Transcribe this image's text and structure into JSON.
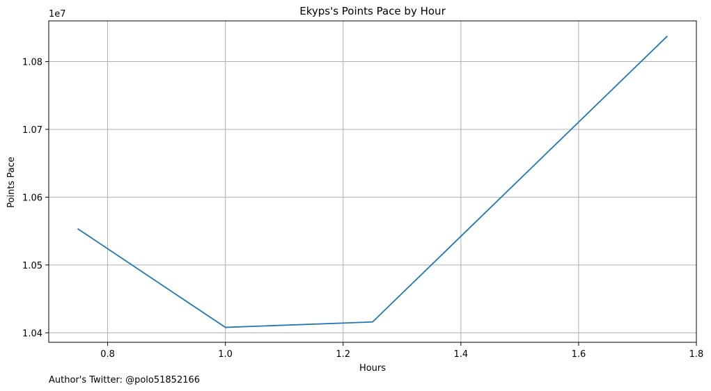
{
  "chart_data": {
    "type": "line",
    "title": "Ekyps's Points Pace by Hour",
    "xlabel": "Hours",
    "ylabel": "Points Pace",
    "y_offset_label": "1e7",
    "xlim": [
      0.7,
      1.8
    ],
    "ylim": [
      10386000,
      10860000
    ],
    "x_ticks": [
      0.8,
      1.0,
      1.2,
      1.4,
      1.6,
      1.8
    ],
    "x_tick_labels": [
      "0.8",
      "1.0",
      "1.2",
      "1.4",
      "1.6",
      "1.8"
    ],
    "y_ticks": [
      10400000,
      10500000,
      10600000,
      10700000,
      10800000
    ],
    "y_tick_labels": [
      "1.04",
      "1.05",
      "1.06",
      "1.07",
      "1.08"
    ],
    "grid": true,
    "series": [
      {
        "color": "#1f77b4",
        "x": [
          0.75,
          1.0,
          1.25,
          1.75
        ],
        "y": [
          10553000,
          10408000,
          10416000,
          10837000
        ]
      }
    ]
  },
  "footer": {
    "text": "Author's Twitter: @polo51852166"
  }
}
